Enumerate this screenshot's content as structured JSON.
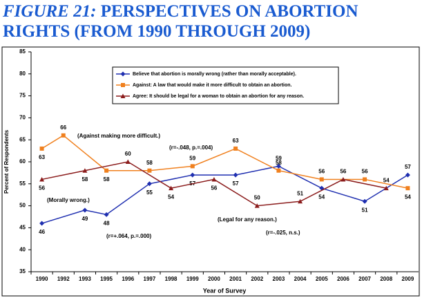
{
  "chart_data": {
    "type": "line",
    "title_prefix": "FIGURE 21:",
    "title": "PERSPECTIVES ON ABORTION RIGHTS (FROM 1990 THROUGH 2009)",
    "y_label": "Percent of Respondents",
    "x_label": "Year of Survey",
    "categories": [
      "1990",
      "1992",
      "1993",
      "1995",
      "1996",
      "1997",
      "1998",
      "1999",
      "2000",
      "2001",
      "2002",
      "2003",
      "2004",
      "2005",
      "2006",
      "2007",
      "2008",
      "2009"
    ],
    "ylim": [
      35,
      85
    ],
    "yticks": [
      35,
      40,
      45,
      50,
      55,
      60,
      65,
      70,
      75,
      80,
      85
    ],
    "series": [
      {
        "name": "Believe that abortion is morally wrong (rather than morally acceptable).",
        "color": "#1f2fb0",
        "marker": "diamond",
        "x": [
          "1990",
          "1993",
          "1995",
          "1997",
          "1999",
          "2001",
          "2003",
          "2005",
          "2007",
          "2009"
        ],
        "values": [
          46,
          49,
          48,
          55,
          57,
          57,
          59,
          54,
          51,
          57
        ]
      },
      {
        "name": "Against: A law that would make it more difficult to obtain an abortion.",
        "color": "#f0801e",
        "marker": "square",
        "x": [
          "1990",
          "1992",
          "1995",
          "1997",
          "1999",
          "2001",
          "2003",
          "2005",
          "2007",
          "2009"
        ],
        "values": [
          63,
          66,
          58,
          58,
          59,
          63,
          58,
          56,
          56,
          54
        ]
      },
      {
        "name": "Agree: It should be legal for a woman to obtain an abortion for any reason.",
        "color": "#8b1c1c",
        "marker": "triangle",
        "x": [
          "1990",
          "1993",
          "1996",
          "1998",
          "2000",
          "2002",
          "2004",
          "2006",
          "2008"
        ],
        "values": [
          56,
          58,
          60,
          54,
          56,
          50,
          51,
          56,
          54
        ]
      }
    ],
    "annotations": [
      "(Against making more difficult.)",
      "(r=-.048, p.=.004)",
      "(Morally wrong.)",
      "(r=+.064, p.=.000)",
      "(Legal for any reason.)",
      "(r=-.025, n.s.)"
    ]
  }
}
